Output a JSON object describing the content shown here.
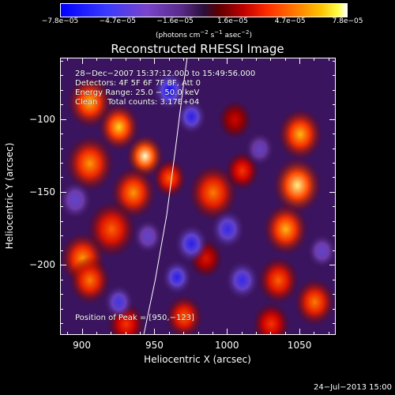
{
  "colorbar": {
    "ticks": [
      "−7.8e−05",
      "−4.7e−05",
      "−1.6e−05",
      "1.6e−05",
      "4.7e−05",
      "7.8e−05"
    ],
    "unit_main": "(photons cm",
    "unit_sup1": "−2",
    "unit_mid": " s",
    "unit_sup2": "−1",
    "unit_mid2": " asec",
    "unit_sup3": "−2",
    "unit_end": ")"
  },
  "annotations": {
    "line1": "28−Dec−2007 15:37:12.000 to 15:49:56.000",
    "line2": "Detectors: 4F 5F 6F 7F 8F, Att 0",
    "line3": "Energy Range: 25.0 − 50.0 keV",
    "line4": "Clean    Total counts: 3.17E+04",
    "peak": "Position of Peak = [950,−123]"
  },
  "footer": "24−Jul−2013 15:00",
  "chart_data": {
    "type": "heatmap",
    "title": "Reconstructed RHESSI Image",
    "xlabel": "Heliocentric X (arcsec)",
    "ylabel": "Heliocentric Y (arcsec)",
    "xlim": [
      885,
      1075
    ],
    "ylim": [
      -248,
      -58
    ],
    "x_ticks": [
      900,
      950,
      1000,
      1050
    ],
    "y_ticks": [
      -100,
      -150,
      -200
    ],
    "x_tick_labels": [
      "900",
      "950",
      "1000",
      "1050"
    ],
    "y_tick_labels": [
      "−100",
      "−150",
      "−200"
    ],
    "color_range": [
      -7.8e-05,
      7.8e-05
    ],
    "colormap": [
      "#0000ff",
      "#7a44cc",
      "#2a0f3a",
      "#c10000",
      "#ff7a00",
      "#ffff4a",
      "#ffffff"
    ],
    "peak_position": [
      950,
      -123
    ],
    "limb_curve": [
      [
        942,
        -248
      ],
      [
        950,
        -210
      ],
      [
        958,
        -165
      ],
      [
        964,
        -120
      ],
      [
        969,
        -80
      ],
      [
        972,
        -58
      ]
    ],
    "blobs": [
      {
        "x": 905,
        "y": -88,
        "v": 6.5e-05,
        "r": 12
      },
      {
        "x": 925,
        "y": -105,
        "v": 7e-05,
        "r": 11
      },
      {
        "x": 905,
        "y": -130,
        "v": 6e-05,
        "r": 13
      },
      {
        "x": 943,
        "y": -125,
        "v": 7.8e-05,
        "r": 10
      },
      {
        "x": 935,
        "y": -150,
        "v": 6e-05,
        "r": 12
      },
      {
        "x": 960,
        "y": -140,
        "v": 5e-05,
        "r": 9
      },
      {
        "x": 990,
        "y": -150,
        "v": 5.5e-05,
        "r": 13
      },
      {
        "x": 1010,
        "y": -135,
        "v": 4e-05,
        "r": 9
      },
      {
        "x": 920,
        "y": -175,
        "v": 5e-05,
        "r": 13
      },
      {
        "x": 900,
        "y": -195,
        "v": 6e-05,
        "r": 12
      },
      {
        "x": 905,
        "y": -210,
        "v": 5.5e-05,
        "r": 11
      },
      {
        "x": 1050,
        "y": -110,
        "v": 6.5e-05,
        "r": 12
      },
      {
        "x": 1048,
        "y": -145,
        "v": 7.5e-05,
        "r": 13
      },
      {
        "x": 1040,
        "y": -175,
        "v": 6.5e-05,
        "r": 12
      },
      {
        "x": 1035,
        "y": -210,
        "v": 5e-05,
        "r": 11
      },
      {
        "x": 1060,
        "y": -225,
        "v": 5.5e-05,
        "r": 11
      },
      {
        "x": 1030,
        "y": -240,
        "v": 4e-05,
        "r": 10
      },
      {
        "x": 985,
        "y": -195,
        "v": 3e-05,
        "r": 9
      },
      {
        "x": 970,
        "y": -235,
        "v": 5e-05,
        "r": 10
      },
      {
        "x": 930,
        "y": -240,
        "v": 4e-05,
        "r": 10
      },
      {
        "x": 1005,
        "y": -100,
        "v": 2.5e-05,
        "r": 9
      },
      {
        "x": 975,
        "y": -98,
        "v": -6.5e-05,
        "r": 8
      },
      {
        "x": 960,
        "y": -80,
        "v": -7.5e-05,
        "r": 9
      },
      {
        "x": 1000,
        "y": -175,
        "v": -6e-05,
        "r": 9
      },
      {
        "x": 975,
        "y": -185,
        "v": -6.5e-05,
        "r": 9
      },
      {
        "x": 1010,
        "y": -210,
        "v": -6e-05,
        "r": 9
      },
      {
        "x": 925,
        "y": -225,
        "v": -5.5e-05,
        "r": 8
      },
      {
        "x": 965,
        "y": -208,
        "v": -6.5e-05,
        "r": 8
      },
      {
        "x": 895,
        "y": -155,
        "v": -4e-05,
        "r": 9
      },
      {
        "x": 1065,
        "y": -190,
        "v": -4e-05,
        "r": 8
      },
      {
        "x": 1022,
        "y": -120,
        "v": -3.5e-05,
        "r": 8
      },
      {
        "x": 945,
        "y": -180,
        "v": -4e-05,
        "r": 8
      }
    ]
  }
}
